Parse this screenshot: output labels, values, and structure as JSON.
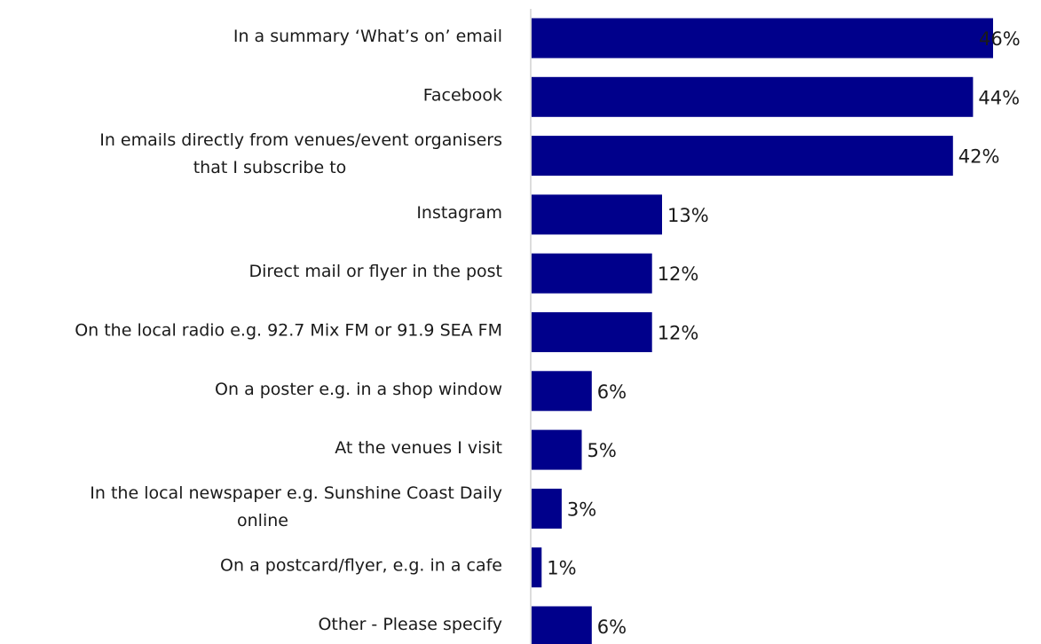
{
  "chart_data": {
    "type": "bar",
    "orientation": "horizontal",
    "categories": [
      "In a summary ‘What’s on’ email",
      "Facebook",
      "In emails directly from venues/event organisers that I subscribe to",
      "Instagram",
      "Direct mail or flyer in the post",
      "On the local radio e.g. 92.7 Mix FM or 91.9 SEA FM",
      "On a poster e.g. in a shop window",
      "At the venues I visit",
      "In the local newspaper e.g. Sunshine Coast Daily online",
      "On a postcard/flyer, e.g. in a cafe",
      "Other - Please specify"
    ],
    "category_lines": [
      [
        "In a summary ‘What’s on’ email"
      ],
      [
        "Facebook"
      ],
      [
        "In emails directly from venues/event organisers",
        "that I subscribe to"
      ],
      [
        "Instagram"
      ],
      [
        "Direct mail or flyer in the post"
      ],
      [
        "On the local radio e.g. 92.7 Mix FM or 91.9 SEA FM"
      ],
      [
        "On a poster e.g. in a shop window"
      ],
      [
        "At the venues I visit"
      ],
      [
        "In the local newspaper e.g. Sunshine Coast Daily",
        "online"
      ],
      [
        "On a postcard/flyer, e.g. in a cafe"
      ],
      [
        "Other - Please specify"
      ]
    ],
    "values": [
      46,
      44,
      42,
      13,
      12,
      12,
      6,
      5,
      3,
      1,
      6
    ],
    "value_labels": [
      "46%",
      "44%",
      "42%",
      "13%",
      "12%",
      "12%",
      "6%",
      "5%",
      "3%",
      "1%",
      "6%"
    ],
    "xlim": [
      0,
      46
    ],
    "bar_color": "#00008B",
    "grid": false,
    "legend": "none"
  }
}
